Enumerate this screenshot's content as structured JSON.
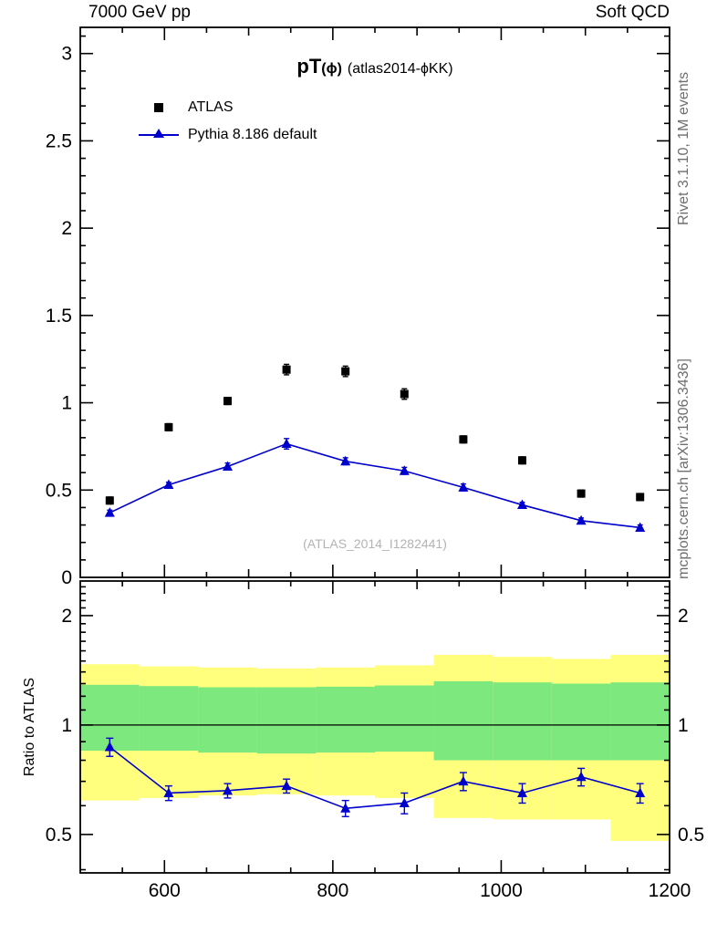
{
  "header": {
    "left": "7000 GeV pp",
    "right": "Soft QCD"
  },
  "title": {
    "observable": "pT",
    "argument": "(ϕ)",
    "variant": "(atlas2014-ϕKK)"
  },
  "legend": {
    "data_label": "ATLAS",
    "mc_label": "Pythia 8.186 default"
  },
  "watermark": "(ATLAS_2014_I1282441)",
  "side_labels": {
    "rivet": "Rivet 3.1.10,  1M events",
    "mcplots": "mcplots.cern.ch [arXiv:1306.3436]"
  },
  "ratio_panel": {
    "ylabel": "Ratio to ATLAS"
  },
  "colors": {
    "mc_blue": "#0000cc",
    "data_black": "#000000",
    "band_yellow": "#ffff7d",
    "band_green": "#7de87d",
    "gray_label": "#6e6e6e",
    "watermark_gray": "#b3b3b3"
  },
  "chart_data": [
    {
      "type": "scatter",
      "panel": "main",
      "title": "pT(ϕ) (atlas2014-ϕKK)",
      "xlim": [
        500,
        1200
      ],
      "ylim": [
        0,
        3.15
      ],
      "x_major_ticks": [
        600,
        800,
        1000,
        1200
      ],
      "x_medium_step": 100,
      "x_minor_step": 50,
      "y_major_ticks": [
        0,
        0.5,
        1,
        1.5,
        2,
        2.5,
        3
      ],
      "y_minor_step": 0.1,
      "grid": false,
      "legend_position": "top-left",
      "x": [
        535,
        605,
        675,
        745,
        815,
        885,
        955,
        1025,
        1095,
        1165
      ],
      "series": [
        {
          "name": "ATLAS",
          "marker": "square",
          "color": "#000000",
          "values": [
            0.44,
            0.86,
            1.01,
            1.19,
            1.18,
            1.05,
            0.79,
            0.67,
            0.48,
            0.46
          ],
          "errors": [
            0.02,
            0.02,
            0.02,
            0.03,
            0.03,
            0.03,
            0.02,
            0.02,
            0.02,
            0.02
          ]
        },
        {
          "name": "Pythia 8.186 default",
          "marker": "triangle",
          "color": "#0000cc",
          "line": true,
          "values": [
            0.37,
            0.53,
            0.635,
            0.765,
            0.665,
            0.61,
            0.515,
            0.415,
            0.325,
            0.285
          ],
          "errors": [
            0.015,
            0.015,
            0.02,
            0.03,
            0.02,
            0.02,
            0.02,
            0.015,
            0.015,
            0.015
          ]
        }
      ]
    },
    {
      "type": "ratio",
      "panel": "ratio",
      "ylabel": "Ratio to ATLAS",
      "yscale": "log",
      "ylim": [
        0.392,
        2.49
      ],
      "y_major_ticks": [
        0.5,
        1,
        2
      ],
      "y_minor_ticks": [
        0.4,
        0.6,
        0.7,
        0.8,
        0.9,
        1.1,
        1.2,
        1.3,
        1.4,
        1.5,
        1.6,
        1.7,
        1.8,
        1.9,
        2.1,
        2.2,
        2.3,
        2.4
      ],
      "reference_line": 1,
      "bin_edges": [
        500,
        570,
        640,
        710,
        780,
        850,
        920,
        990,
        1060,
        1130,
        1200
      ],
      "x": [
        535,
        605,
        675,
        745,
        815,
        885,
        955,
        1025,
        1095,
        1165
      ],
      "values": [
        0.87,
        0.65,
        0.66,
        0.68,
        0.59,
        0.61,
        0.7,
        0.65,
        0.72,
        0.65
      ],
      "errors": [
        0.05,
        0.03,
        0.03,
        0.03,
        0.03,
        0.04,
        0.04,
        0.04,
        0.04,
        0.04
      ],
      "band_yellow_lo": [
        0.62,
        0.63,
        0.64,
        0.645,
        0.64,
        0.63,
        0.555,
        0.55,
        0.55,
        0.48
      ],
      "band_yellow_hi": [
        1.47,
        1.45,
        1.44,
        1.43,
        1.44,
        1.46,
        1.56,
        1.54,
        1.52,
        1.56
      ],
      "band_green_lo": [
        0.85,
        0.85,
        0.84,
        0.835,
        0.84,
        0.845,
        0.8,
        0.8,
        0.8,
        0.8
      ],
      "band_green_hi": [
        1.29,
        1.28,
        1.27,
        1.27,
        1.275,
        1.285,
        1.32,
        1.31,
        1.3,
        1.31
      ]
    }
  ]
}
